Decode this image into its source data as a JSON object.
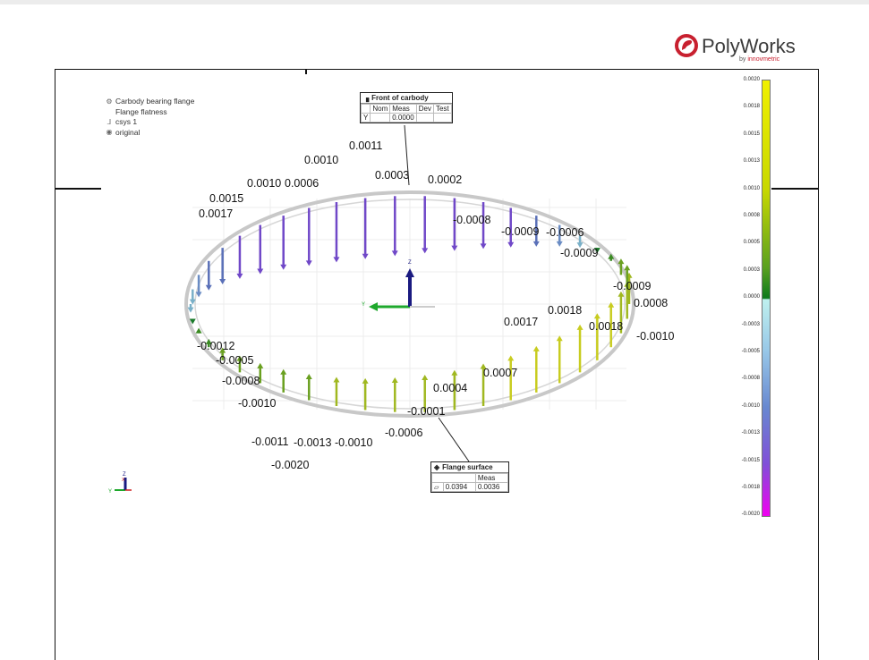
{
  "logo": {
    "brand": "PolyWorks",
    "by": "by",
    "company": "innovmetric",
    "brand_color": "#c8202f"
  },
  "tree": [
    {
      "icon": "feature-icon",
      "label": "Carbody bearing flange"
    },
    {
      "icon": "",
      "label": "Flange flatness"
    },
    {
      "icon": "coordinate-system-icon",
      "label": "csys 1"
    },
    {
      "icon": "mesh-icon",
      "label": "original"
    }
  ],
  "callout_front": {
    "title": "Front of carbody",
    "headers": [
      "",
      "Nom",
      "Meas",
      "Dev",
      "Test"
    ],
    "row": [
      "Y",
      "",
      "0.0000",
      "",
      ""
    ]
  },
  "callout_flange": {
    "title": "Flange surface",
    "meas_header": "Meas",
    "tolerance": "0.0394",
    "meas": "0.0036"
  },
  "color_scale": {
    "labels": [
      "0.0020",
      "0.0018",
      "0.0015",
      "0.0013",
      "0.0010",
      "0.0008",
      "0.0005",
      "0.0003",
      "0.0000",
      "-0.0003",
      "-0.0005",
      "-0.0008",
      "-0.0010",
      "-0.0013",
      "-0.0015",
      "-0.0018",
      "-0.0020"
    ]
  },
  "triad": {
    "x": "X",
    "y": "Y",
    "z": "Z"
  },
  "deviation_labels": [
    "0.0011",
    "0.0010",
    "0.0003",
    "0.0002",
    "0.0010",
    "0.0006",
    "0.0015",
    "0.0017",
    "-0.0008",
    "-0.0009",
    "-0.0006",
    "-0.0009",
    "-0.0009",
    "0.0008",
    "-0.0010",
    "0.0017",
    "0.0018",
    "0.0018",
    "0.0007",
    "0.0004",
    "-0.0001",
    "-0.0012",
    "-0.0005",
    "-0.0008",
    "-0.0010",
    "-0.0011",
    "-0.0013",
    "-0.0010",
    "-0.0006",
    "-0.0020"
  ]
}
